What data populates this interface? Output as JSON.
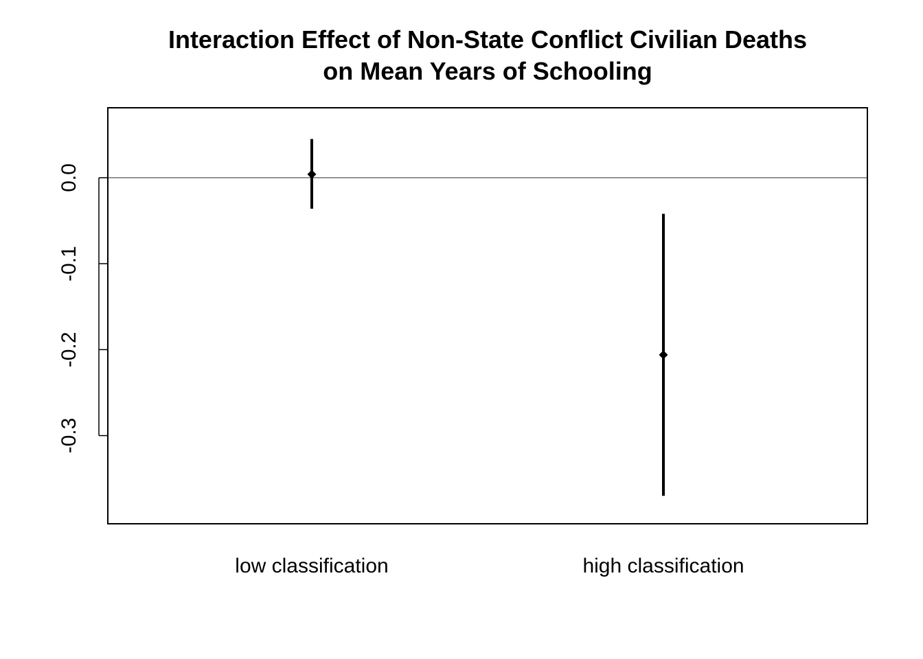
{
  "chart_data": {
    "type": "scatter",
    "title_lines": [
      "Interaction Effect of Non-State Conflict Civilian Deaths",
      "on Mean Years of Schooling"
    ],
    "xlabel": "",
    "ylabel": "",
    "categories": [
      "low classification",
      "high classification"
    ],
    "estimates": [
      0.004,
      -0.206
    ],
    "ci_lower": [
      -0.036,
      -0.37
    ],
    "ci_upper": [
      0.045,
      -0.042
    ],
    "ylim": [
      -0.385,
      0.063
    ],
    "yticks": [
      0.0,
      -0.1,
      -0.2,
      -0.3
    ],
    "ytick_labels": [
      "0.0",
      "-0.1",
      "-0.2",
      "-0.3"
    ],
    "reference_line": 0.0,
    "grid": false,
    "legend": "none",
    "colors": {
      "marks": "#000000",
      "reference_line": "#555555",
      "frame": "#000000"
    }
  }
}
